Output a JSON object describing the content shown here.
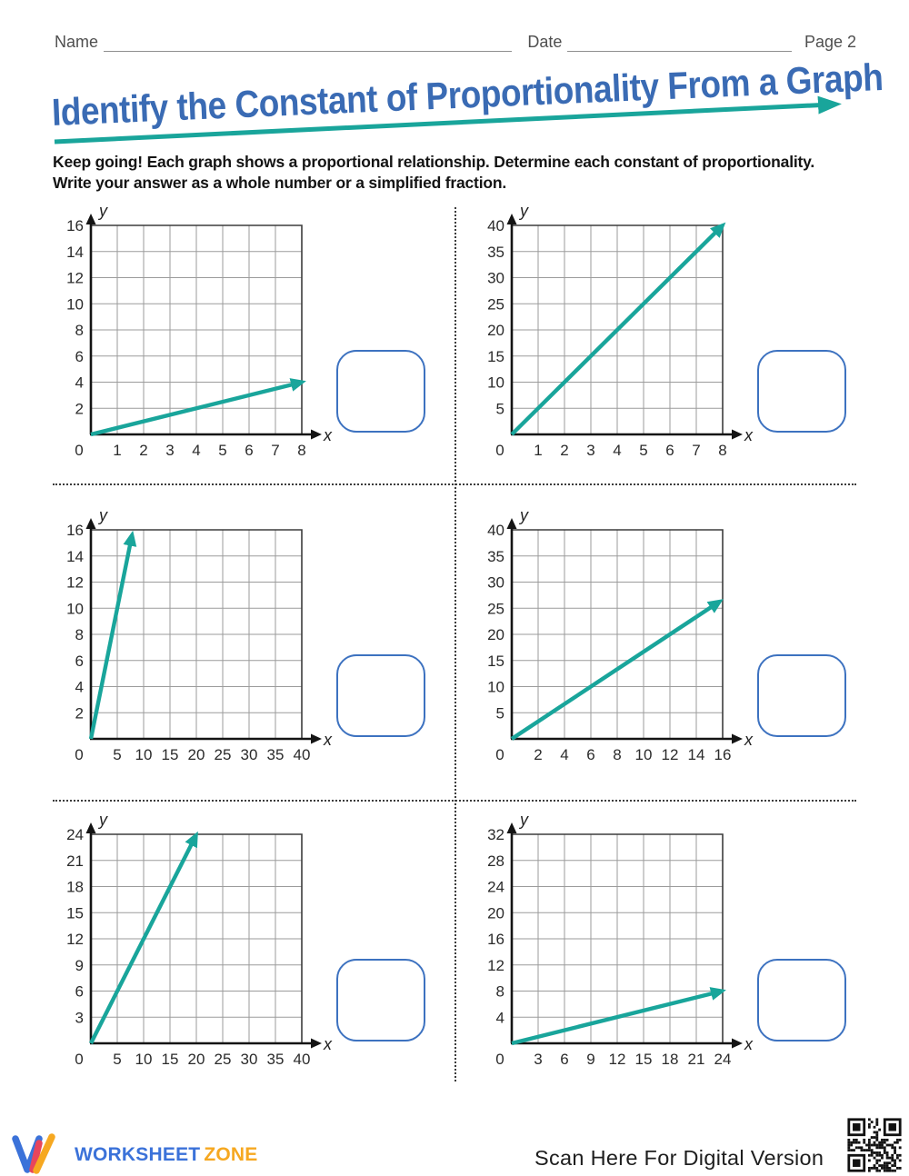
{
  "header": {
    "name_label": "Name",
    "date_label": "Date",
    "page_label": "Page 2"
  },
  "title": "Identify the Constant of Proportionality From a Graph",
  "instructions": {
    "line1": "Keep going! Each graph shows a proportional relationship. Determine each constant of proportionality.",
    "line2": "Write your answer as a whole number or a simplified fraction."
  },
  "colors": {
    "accent_teal": "#19A59B",
    "title_blue": "#3A6BB4",
    "box_border": "#3D72C0",
    "logo_blue": "#3B72D9",
    "logo_red": "#E8455C",
    "logo_orange": "#F6A821"
  },
  "chart_data": [
    {
      "id": 1,
      "type": "line",
      "xlabel": "x",
      "ylabel": "y",
      "grid": true,
      "xlim": [
        0,
        8
      ],
      "ylim": [
        0,
        16
      ],
      "x_ticks": [
        0,
        1,
        2,
        3,
        4,
        5,
        6,
        7,
        8
      ],
      "y_ticks": [
        2,
        4,
        6,
        8,
        10,
        12,
        14,
        16
      ],
      "line": {
        "from": [
          0,
          0
        ],
        "to": [
          7.9,
          3.95
        ]
      },
      "slope": 0.5,
      "answer_value": ""
    },
    {
      "id": 2,
      "type": "line",
      "xlabel": "x",
      "ylabel": "y",
      "grid": true,
      "xlim": [
        0,
        8
      ],
      "ylim": [
        0,
        40
      ],
      "x_ticks": [
        0,
        1,
        2,
        3,
        4,
        5,
        6,
        7,
        8
      ],
      "y_ticks": [
        5,
        10,
        15,
        20,
        25,
        30,
        35,
        40
      ],
      "line": {
        "from": [
          0,
          0
        ],
        "to": [
          7.92,
          39.6
        ]
      },
      "slope": 5,
      "answer_value": ""
    },
    {
      "id": 3,
      "type": "line",
      "xlabel": "x",
      "ylabel": "y",
      "grid": true,
      "xlim": [
        0,
        40
      ],
      "ylim": [
        0,
        16
      ],
      "x_ticks": [
        0,
        5,
        10,
        15,
        20,
        25,
        30,
        35,
        40
      ],
      "y_ticks": [
        2,
        4,
        6,
        8,
        10,
        12,
        14,
        16
      ],
      "line": {
        "from": [
          0,
          0
        ],
        "to": [
          7.7,
          15.4
        ]
      },
      "slope": 2,
      "answer_value": ""
    },
    {
      "id": 4,
      "type": "line",
      "xlabel": "x",
      "ylabel": "y",
      "grid": true,
      "xlim": [
        0,
        16
      ],
      "ylim": [
        0,
        40
      ],
      "x_ticks": [
        0,
        2,
        4,
        6,
        8,
        10,
        12,
        14,
        16
      ],
      "y_ticks": [
        5,
        10,
        15,
        20,
        25,
        30,
        35,
        40
      ],
      "line": {
        "from": [
          0,
          0
        ],
        "to": [
          15.6,
          26.0
        ]
      },
      "slope": 1.667,
      "answer_value": ""
    },
    {
      "id": 5,
      "type": "line",
      "xlabel": "x",
      "ylabel": "y",
      "grid": true,
      "xlim": [
        0,
        40
      ],
      "ylim": [
        0,
        24
      ],
      "x_ticks": [
        0,
        5,
        10,
        15,
        20,
        25,
        30,
        35,
        40
      ],
      "y_ticks": [
        3,
        6,
        9,
        12,
        15,
        18,
        21,
        24
      ],
      "line": {
        "from": [
          0,
          0
        ],
        "to": [
          19.7,
          23.6
        ]
      },
      "slope": 1.2,
      "answer_value": ""
    },
    {
      "id": 6,
      "type": "line",
      "xlabel": "x",
      "ylabel": "y",
      "grid": true,
      "xlim": [
        0,
        24
      ],
      "ylim": [
        0,
        32
      ],
      "x_ticks": [
        0,
        3,
        6,
        9,
        12,
        15,
        18,
        21,
        24
      ],
      "y_ticks": [
        4,
        8,
        12,
        16,
        20,
        24,
        28,
        32
      ],
      "line": {
        "from": [
          0,
          0
        ],
        "to": [
          23.6,
          7.9
        ]
      },
      "slope": 0.333,
      "answer_value": ""
    }
  ],
  "footer": {
    "brand_word1": "WORKSHEET",
    "brand_word2": "ZONE",
    "scan_text": "Scan Here For Digital Version"
  }
}
